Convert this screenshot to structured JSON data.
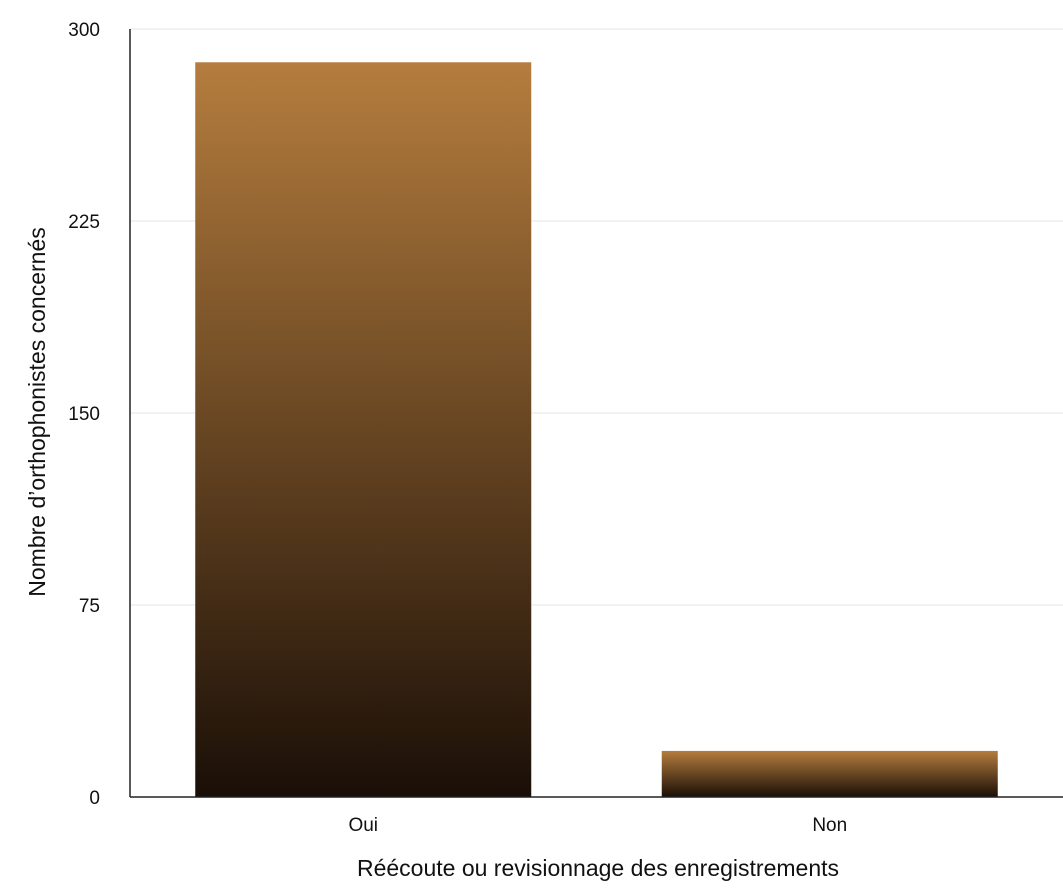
{
  "chart_data": {
    "type": "bar",
    "categories": [
      "Oui",
      "Non"
    ],
    "values": [
      287,
      18
    ],
    "xlabel": "Réécoute ou revisionnage des enregistrements",
    "ylabel": "Nombre d’orthophonistes concernés",
    "ylim": [
      0,
      300
    ],
    "yticks": [
      0,
      75,
      150,
      225,
      300
    ],
    "ytick_labels": [
      "0",
      "75",
      "150",
      "225",
      "300"
    ],
    "grid": true,
    "legend": "none",
    "colors": {
      "bar_top": "#b57d3e",
      "bar_bottom": "#1a0f07",
      "grid": "#e6e6e6",
      "axis": "#222222"
    }
  }
}
